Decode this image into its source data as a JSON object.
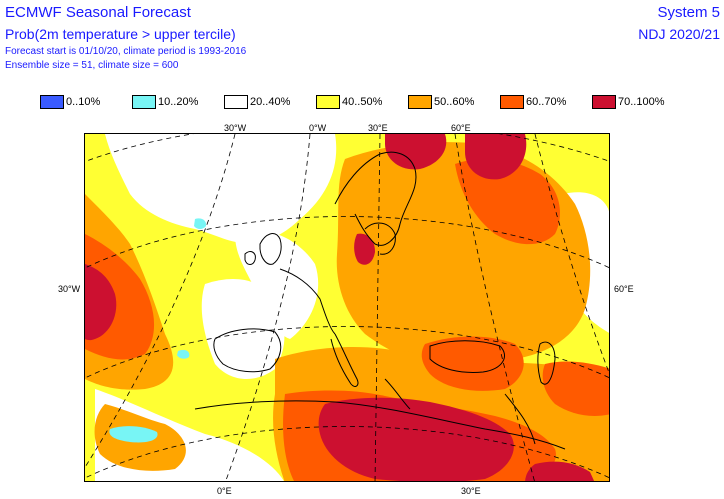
{
  "header": {
    "title": "ECMWF Seasonal Forecast",
    "subtitle": "Prob(2m temperature > upper tercile)",
    "forecast_info": "Forecast start is 01/10/20, climate period is 1993-2016",
    "ensemble_info": "Ensemble size = 51, climate size = 600",
    "system": "System 5",
    "season": "NDJ 2020/21"
  },
  "legend": [
    {
      "label": "0..10%",
      "color": "#3a5bff"
    },
    {
      "label": "10..20%",
      "color": "#78f5f5"
    },
    {
      "label": "20..40%",
      "color": "#ffffff"
    },
    {
      "label": "40..50%",
      "color": "#ffff33"
    },
    {
      "label": "50..60%",
      "color": "#ffa500"
    },
    {
      "label": "60..70%",
      "color": "#ff5a00"
    },
    {
      "label": "70..100%",
      "color": "#cc1030"
    }
  ],
  "axis_labels": {
    "top": [
      "30°W",
      "0°W",
      "30°E",
      "60°E"
    ],
    "bottom": [
      "0°E",
      "30°E"
    ],
    "left": [
      "30°W"
    ],
    "right": [
      "60°E"
    ]
  },
  "colors": {
    "c_white": "#ffffff",
    "c_yellow": "#ffff33",
    "c_orange": "#ffa500",
    "c_darkorange": "#ff5a00",
    "c_red": "#cc1030",
    "c_cyan": "#78f5f5",
    "c_coast": "#000000",
    "c_grid": "#000000"
  }
}
